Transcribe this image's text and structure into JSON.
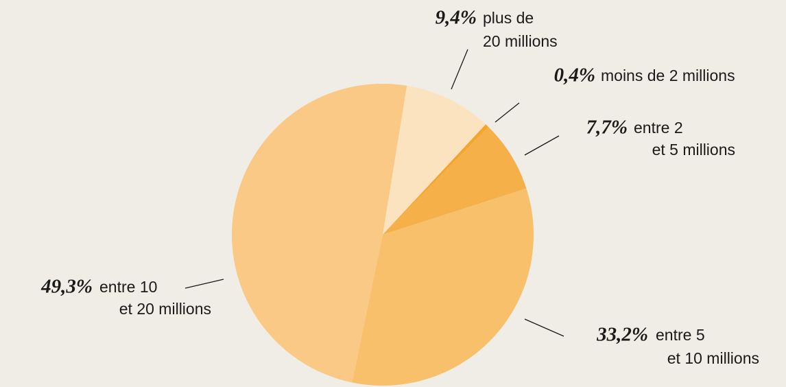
{
  "chart_data": {
    "type": "pie",
    "categories": [
      "plus de\n20 millions",
      "moins de 2 millions",
      "entre 2\net 5 millions",
      "entre 5\net 10 millions",
      "entre 10\net 20 millions"
    ],
    "values": [
      9.4,
      0.4,
      7.7,
      33.2,
      49.3
    ],
    "value_labels": [
      "9,4%",
      "0,4%",
      "7,7%",
      "33,2%",
      "49,3%"
    ],
    "colors": [
      "#fce3bf",
      "#f3a52c",
      "#f5b04a",
      "#f8c06a",
      "#f9c985"
    ]
  }
}
